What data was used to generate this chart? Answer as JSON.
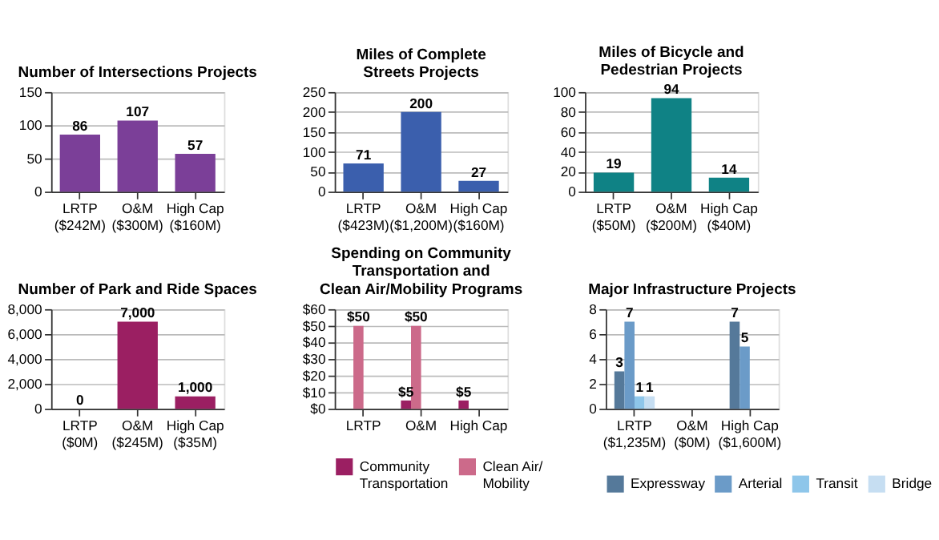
{
  "chart_data": [
    {
      "type": "bar",
      "title": "Number of Intersections Projects",
      "categories": [
        "LRTP\n($242M)",
        "O&M\n($300M)",
        "High Cap\n($160M)"
      ],
      "values": [
        86,
        107,
        57
      ],
      "color": "#7b3f98",
      "ylim": [
        0,
        150
      ],
      "yticks": [
        0,
        50,
        100,
        150
      ],
      "grid": "y",
      "data_labels": true
    },
    {
      "type": "bar",
      "title": "Miles of Complete\nStreets Projects",
      "categories": [
        "LRTP\n($423M)",
        "O&M\n($1,200M)",
        "High Cap\n($160M)"
      ],
      "values": [
        71,
        200,
        27
      ],
      "color": "#3b5fad",
      "ylim": [
        0,
        250
      ],
      "yticks": [
        0,
        50,
        100,
        150,
        200,
        250
      ],
      "grid": "y",
      "data_labels": true
    },
    {
      "type": "bar",
      "title": "Miles of Bicycle and\nPedestrian Projects",
      "categories": [
        "LRTP\n($50M)",
        "O&M\n($200M)",
        "High Cap\n($40M)"
      ],
      "values": [
        19,
        94,
        14
      ],
      "color": "#0f8285",
      "ylim": [
        0,
        100
      ],
      "yticks": [
        0,
        20,
        40,
        60,
        80,
        100
      ],
      "grid": "y",
      "data_labels": true
    },
    {
      "type": "bar",
      "title": "Number of Park and Ride Spaces",
      "categories": [
        "LRTP\n($0M)",
        "O&M\n($245M)",
        "High Cap\n($35M)"
      ],
      "values": [
        0,
        7000,
        1000
      ],
      "color": "#9b1f62",
      "ylim": [
        0,
        8000
      ],
      "yticks": [
        0,
        {
          "value": 2000,
          "label": "2,000"
        },
        {
          "value": 4000,
          "label": "4,000"
        },
        {
          "value": 6000,
          "label": "6,000"
        },
        {
          "value": 8000,
          "label": "8,000"
        }
      ],
      "grid": "y",
      "value_labels": [
        "0",
        "7,000",
        "1,000"
      ]
    },
    {
      "type": "bar",
      "title": "Spending on Community\nTransportation and\nClean Air/Mobility Programs",
      "categories": [
        "LRTP",
        "O&M",
        "High Cap"
      ],
      "series": [
        {
          "name": "Community\nTransportation",
          "color": "#9b1f62",
          "values": [
            null,
            5,
            5
          ],
          "value_labels": [
            null,
            "$5",
            "$5"
          ]
        },
        {
          "name": "Clean Air/\nMobility",
          "color": "#cc6a8a",
          "values": [
            50,
            50,
            null
          ],
          "value_labels": [
            "$50",
            "$50",
            null
          ]
        }
      ],
      "ylim": [
        0,
        60
      ],
      "yticks": [
        {
          "value": 0,
          "label": "$0"
        },
        {
          "value": 10,
          "label": "$10"
        },
        {
          "value": 20,
          "label": "$20"
        },
        {
          "value": 30,
          "label": "$30"
        },
        {
          "value": 40,
          "label": "$40"
        },
        {
          "value": 50,
          "label": "$50"
        },
        {
          "value": 60,
          "label": "$60"
        }
      ],
      "grid": "y",
      "legend": "bottom"
    },
    {
      "type": "bar",
      "title": "Major Infrastructure Projects",
      "categories": [
        "LRTP\n($1,235M)",
        "O&M\n($0M)",
        "High Cap\n($1,600M)"
      ],
      "series": [
        {
          "name": "Expressway",
          "color": "#55799a",
          "values": [
            3,
            null,
            7
          ]
        },
        {
          "name": "Arterial",
          "color": "#6b9bc8",
          "values": [
            7,
            null,
            5
          ]
        },
        {
          "name": "Transit",
          "color": "#8ec6ea",
          "values": [
            1,
            null,
            null
          ]
        },
        {
          "name": "Bridge",
          "color": "#c6def2",
          "values": [
            1,
            null,
            null
          ]
        }
      ],
      "ylim": [
        0,
        8
      ],
      "yticks": [
        0,
        2,
        4,
        6,
        8
      ],
      "grid": "y",
      "data_labels": true,
      "legend": "bottom"
    }
  ]
}
